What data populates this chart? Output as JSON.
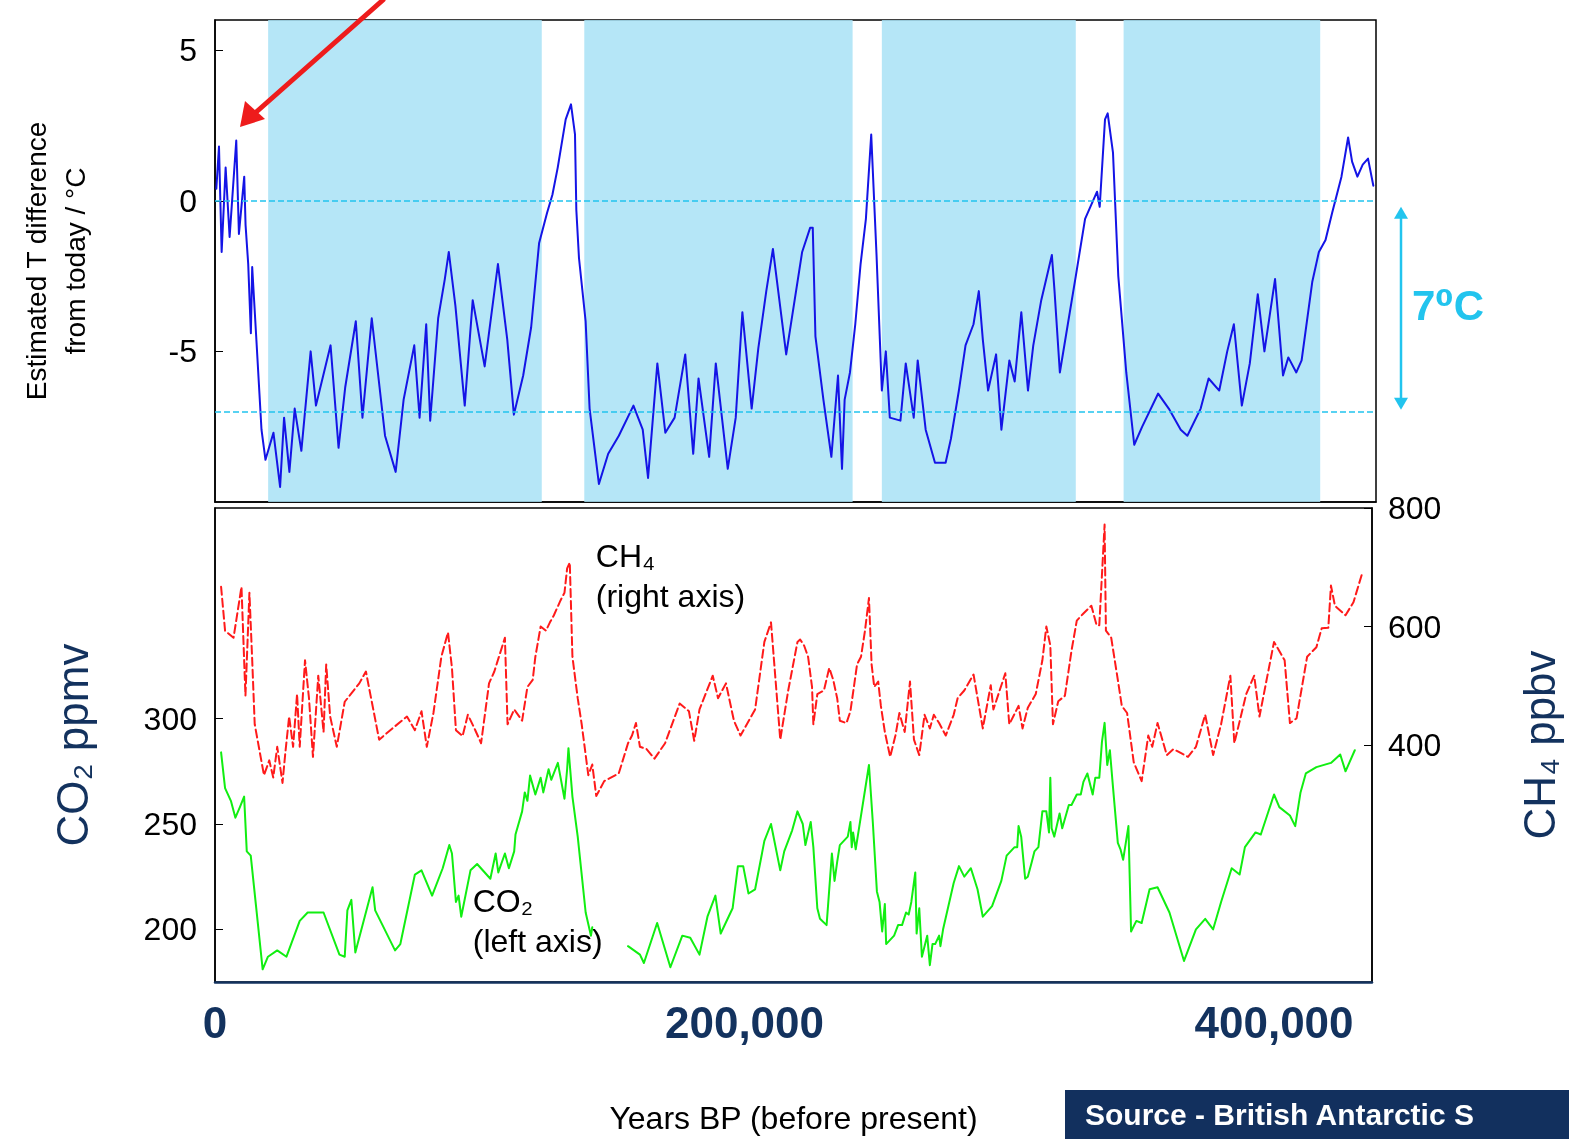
{
  "chart_data": [
    {
      "type": "line",
      "ylabel": "Estimated T difference\nfrom today / °C",
      "xlim": [
        0,
        437000
      ],
      "ylim": [
        -10,
        6
      ],
      "yticks": [
        -5,
        0,
        5
      ],
      "tick_labels": "y",
      "annotations": [
        "7⁰C"
      ],
      "ref_lines": [
        {
          "axis": "y",
          "value": 0,
          "color": "#22c4ee",
          "line_style": "dashed"
        },
        {
          "axis": "y",
          "value": -7,
          "color": "#22c4ee",
          "line_style": "dashed"
        }
      ],
      "bands": [
        {
          "axis": "x",
          "from": 20000,
          "to": 123000,
          "color": "#a8e2f6"
        },
        {
          "axis": "x",
          "from": 139000,
          "to": 240000,
          "color": "#a8e2f6"
        },
        {
          "axis": "x",
          "from": 251000,
          "to": 324000,
          "color": "#a8e2f6"
        },
        {
          "axis": "x",
          "from": 342000,
          "to": 416000,
          "color": "#a8e2f6"
        }
      ],
      "series": [
        {
          "color": "#1414e6",
          "x": [
            500,
            1500,
            2500,
            4000,
            5500,
            8000,
            9000,
            11000,
            11500,
            12500,
            13500,
            14000,
            15500,
            17500,
            19000,
            22000,
            24500,
            26000,
            28000,
            30000,
            32500,
            36000,
            38000,
            43500,
            46500,
            49000,
            53000,
            55500,
            59000,
            64000,
            68000,
            71000,
            75000,
            77000,
            79500,
            81000,
            84000,
            86500,
            88000,
            90500,
            94000,
            97000,
            101500,
            106500,
            110000,
            112500,
            116000,
            119000,
            122000,
            125000,
            127000,
            129000,
            132000,
            134000,
            135500,
            136000,
            137000,
            139500,
            141000,
            144500,
            148000,
            152000,
            157500,
            161000,
            163000,
            166500,
            169500,
            173000,
            177000,
            180000,
            182000,
            186000,
            188500,
            193000,
            196000,
            198500,
            202000,
            204500,
            207500,
            210000,
            215000,
            221000,
            224000,
            225000,
            226000,
            229000,
            232000,
            234500,
            236000,
            237000,
            239000,
            241000,
            243000,
            245000,
            247000,
            249000,
            251000,
            252500,
            254000,
            258000,
            260000,
            263000,
            264500,
            267500,
            271000,
            275000,
            277000,
            280000,
            282500,
            285500,
            287500,
            289000,
            291000,
            294000,
            296000,
            299000,
            301000,
            303500,
            306000,
            308000,
            311000,
            315000,
            316000,
            318000,
            321000,
            324000,
            327500,
            332000,
            333000,
            335000,
            336000,
            338000,
            340000,
            343000,
            346000,
            349000,
            355000,
            359000,
            363500,
            366000,
            371000,
            374000,
            378000,
            381000,
            383500,
            386500,
            389500,
            392500,
            395000,
            399000,
            402000,
            404000,
            407000,
            409000,
            413000,
            415500,
            418000,
            420500,
            424000,
            426500,
            428000,
            430000,
            432000,
            434000,
            436000
          ],
          "values": [
            0.4,
            1.8,
            -1.7,
            1.1,
            -1.2,
            2.0,
            -1.1,
            0.8,
            -0.8,
            -2.1,
            -4.4,
            -2.2,
            -4.5,
            -7.6,
            -8.6,
            -7.7,
            -9.5,
            -7.2,
            -9.0,
            -6.9,
            -8.3,
            -5.0,
            -6.8,
            -4.8,
            -8.2,
            -6.2,
            -4.0,
            -7.2,
            -3.9,
            -7.8,
            -9.0,
            -6.6,
            -4.8,
            -7.2,
            -4.1,
            -7.3,
            -3.9,
            -2.6,
            -1.7,
            -3.5,
            -6.8,
            -3.3,
            -5.5,
            -2.1,
            -4.6,
            -7.1,
            -5.8,
            -4.2,
            -1.4,
            -0.4,
            0.2,
            1.1,
            2.7,
            3.2,
            2.2,
            -0.3,
            -1.9,
            -4.0,
            -6.9,
            -9.4,
            -8.4,
            -7.8,
            -6.8,
            -7.6,
            -9.2,
            -5.4,
            -7.7,
            -7.2,
            -5.1,
            -8.4,
            -5.9,
            -8.5,
            -5.4,
            -8.9,
            -7.2,
            -3.7,
            -6.9,
            -4.9,
            -3.0,
            -1.6,
            -5.1,
            -1.7,
            -0.9,
            -0.9,
            -4.5,
            -6.6,
            -8.5,
            -5.8,
            -8.9,
            -6.6,
            -5.7,
            -4.1,
            -2.1,
            -0.6,
            2.2,
            -1.8,
            -6.3,
            -5.0,
            -7.2,
            -7.3,
            -5.4,
            -7.2,
            -5.3,
            -7.6,
            -8.7,
            -8.7,
            -7.9,
            -6.3,
            -4.8,
            -4.1,
            -3.0,
            -4.6,
            -6.3,
            -5.1,
            -7.6,
            -5.3,
            -6.0,
            -3.7,
            -6.3,
            -4.8,
            -3.3,
            -1.8,
            -3.0,
            -5.7,
            -4.1,
            -2.5,
            -0.6,
            0.3,
            -0.2,
            2.7,
            2.9,
            1.6,
            -2.5,
            -5.7,
            -8.1,
            -7.5,
            -6.4,
            -6.9,
            -7.6,
            -7.8,
            -6.9,
            -5.9,
            -6.3,
            -5.0,
            -4.1,
            -6.8,
            -5.4,
            -3.1,
            -5.0,
            -2.6,
            -5.8,
            -5.2,
            -5.7,
            -5.3,
            -2.7,
            -1.7,
            -1.3,
            -0.4,
            0.8,
            2.1,
            1.3,
            0.8,
            1.2,
            1.4,
            0.5
          ]
        }
      ]
    },
    {
      "type": "line",
      "xlabel": "Years BP (before present)",
      "ylabel": "CO₂ ppmv",
      "y2label": "CH₄ ppbv",
      "xlim": [
        0,
        437000
      ],
      "xticks": [
        0,
        {
          "value": 200000,
          "label": "200,000"
        },
        {
          "value": 400000,
          "label": "400,000"
        }
      ],
      "ylim": [
        175,
        400
      ],
      "yticks": [
        200,
        250,
        300
      ],
      "y2lim": [
        0,
        800
      ],
      "y2ticks": [
        400,
        600,
        800
      ],
      "annotations": [
        "Source - British Antarctic S"
      ],
      "series": [
        {
          "name": "CO₂\n(left axis)",
          "color": "#11ee11",
          "axis": "y",
          "line_style": "solid",
          "x": [
            2300,
            3800,
            6000,
            7700,
            9400,
            11000,
            12000,
            13500,
            18000,
            20000,
            23500,
            27000,
            32000,
            35000,
            41000,
            47000,
            49000,
            50000,
            51500,
            53000,
            59500,
            60500,
            68000,
            70000,
            75500,
            78000,
            82000,
            86000,
            88500,
            89500,
            91000,
            92000,
            93000,
            96500,
            99000,
            104000,
            106000,
            107000,
            109500,
            111000,
            113000,
            113500,
            116000,
            117000,
            118000,
            119000,
            121000,
            123000,
            124000,
            126000,
            127000,
            129500,
            132000,
            133000,
            133500,
            135000,
            137000,
            140000,
            142000,
            142500,
            149000,
            156000,
            160500,
            162000,
            167000,
            172000,
            176500,
            179500,
            183000,
            186000,
            189000,
            191000,
            195500,
            197500,
            199500,
            201500,
            204000,
            207500,
            210000,
            213500,
            215000,
            218000,
            220000,
            222000,
            223000,
            225000,
            226000,
            227500,
            228500,
            231000,
            233000,
            234000,
            235000,
            236000,
            239000,
            240000,
            240500,
            241000,
            242000,
            243000,
            247000,
            248500,
            250000,
            251000,
            252000,
            253000,
            253500,
            256500,
            258000,
            259500,
            261000,
            262000,
            263000,
            264500,
            265000,
            266000,
            267000,
            269000,
            270000,
            271000,
            272000,
            273500,
            274000,
            275000,
            279000,
            281000,
            283000,
            285500,
            288000,
            290000,
            293500,
            297000,
            299000,
            302000,
            303000,
            303500,
            304500,
            306000,
            307000,
            308500,
            309500,
            311000,
            312500,
            314000,
            315000,
            315500,
            316000,
            317000,
            319000,
            320000,
            322500,
            323500,
            325500,
            327000,
            328000,
            329500,
            331500,
            332500,
            334000,
            335000,
            336000,
            337000,
            338000,
            339000,
            341000,
            342000,
            343000,
            345000,
            346000,
            348000,
            350000,
            353000,
            356000,
            360500,
            366000,
            370500,
            374000,
            377000,
            380000,
            384000,
            387000,
            389000,
            393000,
            395000,
            400000,
            402000,
            406000,
            408000,
            410000,
            412000,
            416000,
            421500,
            425000,
            427000,
            430500
          ],
          "values": [
            284,
            267,
            261,
            253,
            258,
            263,
            237,
            235,
            181,
            187,
            190,
            187,
            204,
            208,
            208,
            188,
            187,
            209,
            214,
            189,
            220,
            209,
            190,
            193,
            226,
            228,
            216,
            229,
            240,
            236,
            213,
            216,
            206,
            228,
            231,
            224,
            236,
            227,
            236,
            229,
            237,
            245,
            256,
            265,
            261,
            273,
            264,
            272,
            265,
            276,
            271,
            279,
            262,
            276,
            286,
            263,
            244,
            208,
            197,
            201,
            null,
            192,
            188,
            184,
            203,
            182,
            197,
            196,
            188,
            206,
            216,
            198,
            210,
            230,
            230,
            217,
            219,
            242,
            250,
            228,
            237,
            247,
            256,
            250,
            240,
            251,
            239,
            210,
            205,
            202,
            236,
            223,
            232,
            240,
            244,
            251,
            239,
            246,
            238,
            246,
            278,
            250,
            218,
            213,
            199,
            212,
            193,
            197,
            202,
            202,
            208,
            207,
            213,
            227,
            198,
            210,
            187,
            197,
            183,
            193,
            193,
            197,
            192,
            200,
            222,
            230,
            225,
            229,
            219,
            206,
            211,
            223,
            235,
            239,
            239,
            249,
            244,
            224,
            225,
            232,
            237,
            239,
            256,
            256,
            246,
            272,
            248,
            244,
            255,
            248,
            259,
            259,
            264,
            264,
            270,
            274,
            264,
            272,
            272,
            289,
            298,
            278,
            285,
            270,
            241,
            238,
            233,
            249,
            199,
            204,
            203,
            219,
            220,
            208,
            185,
            200,
            205,
            200,
            213,
            229,
            226,
            239,
            246,
            245,
            264,
            258,
            254,
            249,
            265,
            274,
            277,
            279,
            283,
            275,
            285
          ]
        },
        {
          "name": "CH₄\n(right axis)",
          "color": "#ff1a1a",
          "axis": "y2",
          "line_style": "dashed",
          "x": [
            2300,
            3800,
            7000,
            10000,
            11500,
            13000,
            14000,
            15000,
            18500,
            20500,
            22000,
            23500,
            25500,
            26500,
            28000,
            29500,
            31000,
            32000,
            34000,
            35500,
            37000,
            38000,
            39000,
            41000,
            42000,
            43500,
            46000,
            49000,
            54500,
            57000,
            62000,
            67000,
            72500,
            75500,
            78000,
            80000,
            82500,
            85500,
            88000,
            89500,
            91000,
            93500,
            95500,
            98000,
            100500,
            103500,
            105500,
            109500,
            110500,
            113000,
            116000,
            118000,
            120000,
            121000,
            123000,
            125000,
            126500,
            128000,
            130500,
            132000,
            133000,
            134000,
            135000,
            137000,
            138500,
            141000,
            142500,
            144000,
            147000,
            152500,
            156000,
            157500,
            159000,
            160500,
            163000,
            166000,
            170000,
            175500,
            179000,
            181000,
            183000,
            188000,
            190000,
            193000,
            196000,
            198500,
            204000,
            207500,
            210000,
            213500,
            216500,
            220000,
            221000,
            222500,
            224000,
            225500,
            226000,
            227500,
            230000,
            232000,
            233500,
            235000,
            236000,
            238500,
            240000,
            241500,
            242500,
            244000,
            245500,
            247000,
            248000,
            249000,
            250500,
            251500,
            253000,
            255000,
            257000,
            258500,
            260500,
            262500,
            264000,
            266000,
            268000,
            270000,
            271500,
            273500,
            276000,
            279000,
            280500,
            283000,
            286500,
            290000,
            293000,
            294000,
            298500,
            300000,
            303500,
            305000,
            307000,
            310000,
            312500,
            314000,
            315500,
            316500,
            318500,
            321000,
            323500,
            325500,
            328000,
            331000,
            333000,
            334000,
            336000,
            336500,
            338500,
            341000,
            342500,
            344500,
            347000,
            350000,
            352500,
            354000,
            356000,
            359500,
            362000,
            367500,
            370500,
            374000,
            377000,
            380000,
            383500,
            385000,
            389500,
            392500,
            394500,
            397500,
            400000,
            404000,
            406000,
            408500,
            412500,
            416000,
            418000,
            420500,
            421500,
            423000,
            427000,
            430000,
            433500
          ],
          "values": [
            667,
            593,
            581,
            667,
            483,
            657,
            549,
            435,
            349,
            374,
            345,
            397,
            336,
            384,
            448,
            397,
            486,
            397,
            543,
            479,
            380,
            448,
            517,
            422,
            536,
            448,
            397,
            473,
            504,
            524,
            409,
            428,
            448,
            425,
            457,
            397,
            454,
            549,
            590,
            530,
            425,
            415,
            451,
            428,
            403,
            504,
            524,
            581,
            435,
            460,
            441,
            498,
            510,
            549,
            600,
            593,
            607,
            619,
            644,
            657,
            698,
            708,
            549,
            479,
            435,
            349,
            367,
            314,
            339,
            352,
            403,
            416,
            437,
            397,
            393,
            377,
            403,
            470,
            457,
            407,
            460,
            517,
            479,
            504,
            441,
            416,
            460,
            574,
            607,
            409,
            492,
            574,
            578,
            568,
            549,
            498,
            435,
            486,
            492,
            530,
            510,
            479,
            441,
            437,
            457,
            504,
            536,
            549,
            593,
            648,
            536,
            498,
            507,
            466,
            422,
            380,
            416,
            454,
            422,
            507,
            409,
            383,
            451,
            428,
            451,
            437,
            416,
            451,
            479,
            492,
            519,
            428,
            501,
            460,
            521,
            435,
            466,
            428,
            463,
            486,
            543,
            600,
            568,
            435,
            474,
            483,
            559,
            610,
            622,
            635,
            602,
            602,
            772,
            593,
            581,
            510,
            466,
            454,
            371,
            339,
            416,
            397,
            437,
            383,
            393,
            380,
            397,
            451,
            383,
            435,
            517,
            403,
            486,
            517,
            448,
            517,
            574,
            543,
            437,
            445,
            549,
            565,
            597,
            598,
            669,
            635,
            619,
            641,
            693
          ]
        }
      ]
    }
  ]
}
